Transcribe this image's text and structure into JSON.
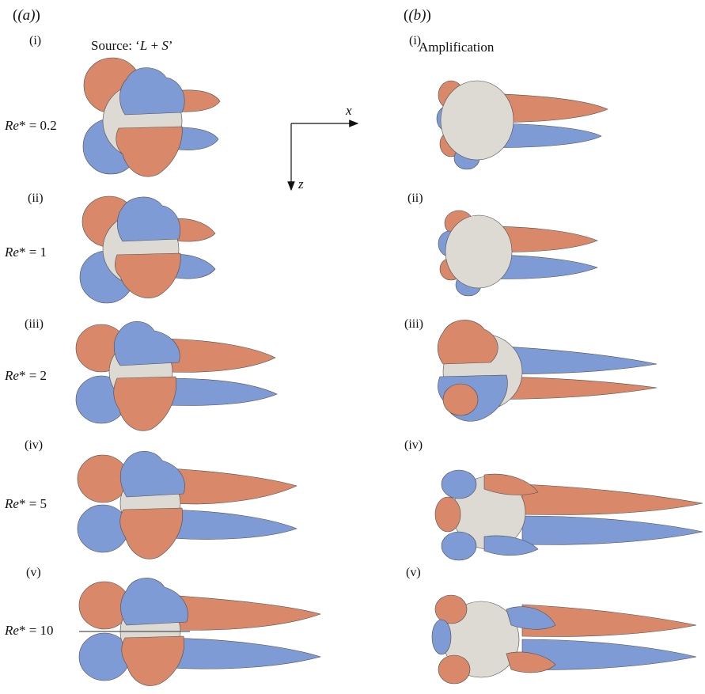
{
  "figure": {
    "columns": [
      {
        "label": "(a)",
        "title_prefix": "Source: ‘",
        "title_L": "L",
        "title_plus": " + ",
        "title_S": "S",
        "title_suffix": "’"
      },
      {
        "label": "(b)",
        "title": "Amplification"
      }
    ],
    "rows": [
      {
        "roman": "(i)",
        "re_symbol": "Re",
        "re_star": "*",
        "re_eq": " = ",
        "re_value": "0.2"
      },
      {
        "roman": "(ii)",
        "re_symbol": "Re",
        "re_star": "*",
        "re_eq": " = ",
        "re_value": "1"
      },
      {
        "roman": "(iii)",
        "re_symbol": "Re",
        "re_star": "*",
        "re_eq": " = ",
        "re_value": "2"
      },
      {
        "roman": "(iv)",
        "re_symbol": "Re",
        "re_star": "*",
        "re_eq": " = ",
        "re_value": "5"
      },
      {
        "roman": "(v)",
        "re_symbol": "Re",
        "re_star": "*",
        "re_eq": " = ",
        "re_value": "10"
      }
    ],
    "axes": {
      "x_label": "x",
      "z_label": "z"
    },
    "colors": {
      "orange": "#d9896a",
      "blue": "#7f9bd6",
      "sphere": "#dcdad2",
      "outline": "#4d4d4d"
    }
  }
}
